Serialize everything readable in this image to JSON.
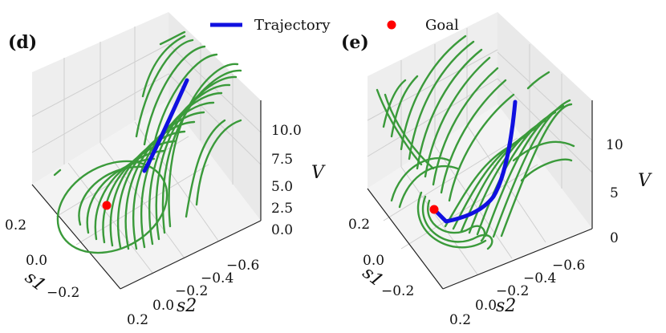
{
  "legend": {
    "trajectory": "Trajectory",
    "goal": "Goal"
  },
  "colors": {
    "contour": "#3a9a3a",
    "trajectory": "#1010e0",
    "goal": "#ff0000",
    "pane": "#ebebeb",
    "grid": "#d0d0d0"
  },
  "chart_data": [
    {
      "type": "contour3d",
      "panel_label": "(d)",
      "xlabel": "s1",
      "ylabel": "s2",
      "zlabel": "V",
      "s1_ticks": [
        "0.2",
        "0.0",
        "−0.2"
      ],
      "s2_ticks": [
        "0.2",
        "0.0",
        "−0.2",
        "−0.4",
        "−0.6"
      ],
      "z_ticks": [
        "10.0",
        "7.5",
        "5.0",
        "2.5",
        "0.0"
      ],
      "zlim": [
        0,
        12
      ]
    },
    {
      "type": "contour3d",
      "panel_label": "(e)",
      "xlabel": "s1",
      "ylabel": "s2",
      "zlabel": "V",
      "s1_ticks": [
        "0.2",
        "0.0",
        "−0.2"
      ],
      "s2_ticks": [
        "0.2",
        "0.0",
        "−0.2",
        "−0.4",
        "−0.6"
      ],
      "z_ticks": [
        "10",
        "5",
        "0"
      ],
      "zlim": [
        0,
        14
      ]
    }
  ]
}
